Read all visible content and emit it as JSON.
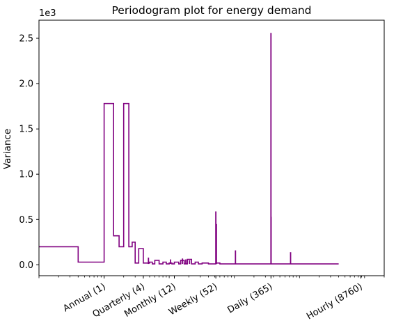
{
  "chart_data": {
    "type": "line",
    "title": "Periodogram plot for energy demand",
    "xlabel": "",
    "ylabel": "Variance",
    "y_offset_text": "1e3",
    "x_scale": "log",
    "xlim": [
      0.1,
      20000
    ],
    "ylim": [
      -0.12,
      2.7
    ],
    "y_ticks": [
      0.0,
      0.5,
      1.0,
      1.5,
      2.0,
      2.5
    ],
    "y_tick_labels": [
      "0.0",
      "0.5",
      "1.0",
      "1.5",
      "2.0",
      "2.5"
    ],
    "x_ticks": [
      1,
      4,
      12,
      52,
      365,
      8760
    ],
    "x_tick_labels": [
      "Annual (1)",
      "Quarterly (4)",
      "Monthly (12)",
      "Weekly (52)",
      "Daily (365)",
      "Hourly (8760)"
    ],
    "line_color": "#800080",
    "grid": false,
    "series": [
      {
        "drawstyle": "steps-pre",
        "x": [
          0.1,
          0.2,
          0.4,
          1.0,
          1.4,
          1.7,
          2.0,
          2.4,
          2.7,
          3.0,
          3.4,
          4.0,
          5.0,
          5.5,
          6.0,
          7.0,
          8.0,
          9.0,
          10.0,
          11.0,
          12.0,
          14.0,
          15.0,
          17.0,
          19.0,
          22.0,
          25.0,
          28.0,
          32.0,
          40.0,
          52.0,
          60.0,
          70.0,
          104.0,
          180.0,
          300.0,
          365.0,
          450.0,
          730.0,
          1500.0,
          4000.0
        ],
        "y": [
          0.2,
          0.2,
          0.03,
          1.78,
          0.32,
          0.2,
          1.78,
          0.2,
          0.25,
          0.02,
          0.18,
          0.02,
          0.03,
          0.01,
          0.05,
          0.01,
          0.03,
          0.01,
          0.02,
          0.01,
          0.03,
          0.01,
          0.05,
          0.01,
          0.06,
          0.01,
          0.03,
          0.01,
          0.02,
          0.01,
          0.02,
          0.01,
          0.01,
          0.01,
          0.01,
          0.01,
          0.01,
          0.01,
          0.01,
          0.01,
          0.01
        ]
      }
    ],
    "spikes": [
      {
        "x": 4.8,
        "y": 0.08
      },
      {
        "x": 10.5,
        "y": 0.06
      },
      {
        "x": 16.0,
        "y": 0.07
      },
      {
        "x": 18.0,
        "y": 0.06
      },
      {
        "x": 20.5,
        "y": 0.05
      },
      {
        "x": 52.0,
        "y": 0.59
      },
      {
        "x": 53.0,
        "y": 0.45
      },
      {
        "x": 104.0,
        "y": 0.16
      },
      {
        "x": 365.0,
        "y": 2.56
      },
      {
        "x": 366.0,
        "y": 0.53
      },
      {
        "x": 730.0,
        "y": 0.14
      }
    ]
  }
}
